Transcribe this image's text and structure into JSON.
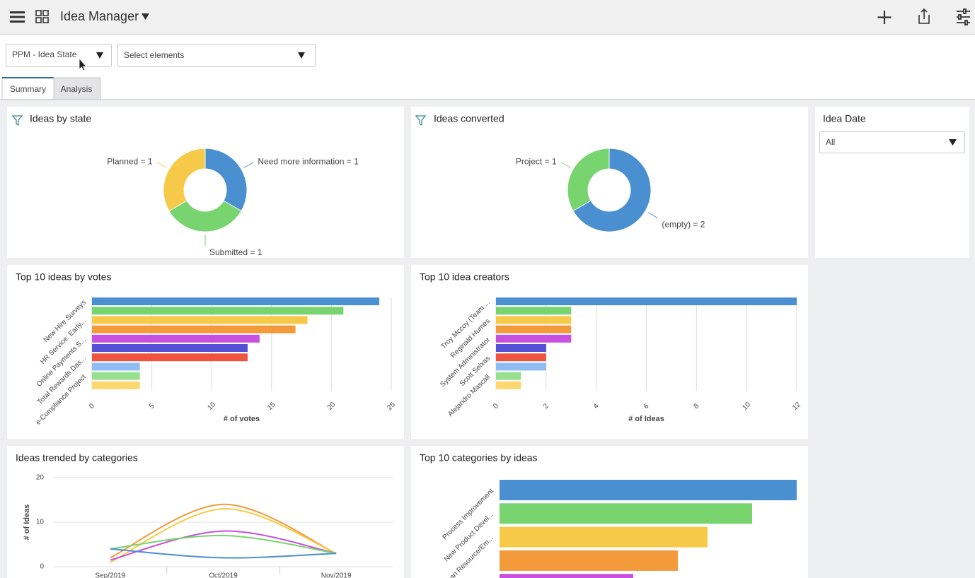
{
  "header": {
    "title": "Idea Manager"
  },
  "filters": {
    "state": "PPM - Idea State",
    "elements": "Select elements"
  },
  "tabs": [
    "Summary",
    "Analysis"
  ],
  "idea_date": {
    "title": "Idea Date",
    "value": "All"
  },
  "chart_data": [
    {
      "type": "donut",
      "title": "Ideas by state",
      "values": [
        1,
        1,
        1
      ],
      "value_labels": [
        "Need more information = 1",
        "Submitted = 1",
        "Planned = 1"
      ],
      "colors": [
        "#4a8fd0",
        "#77d46e",
        "#f7c948"
      ]
    },
    {
      "type": "donut",
      "title": "Ideas converted",
      "values": [
        2,
        1
      ],
      "value_labels": [
        "(empty) = 2",
        "Project = 1"
      ],
      "colors": [
        "#4a8fd0",
        "#77d46e"
      ]
    },
    {
      "type": "hbar",
      "title": "Top 10 ideas by votes",
      "xlabel": "# of votes",
      "categories": [
        "New Hire Surveys",
        null,
        "HR Service: Early...",
        null,
        "Online Payments S...",
        null,
        "Total Rewards Das...",
        null,
        "e-Compliance Project",
        null
      ],
      "values": [
        24,
        21,
        18,
        17,
        14,
        13,
        13,
        4,
        4,
        4
      ],
      "colors": [
        "#4a8fd0",
        "#77d46e",
        "#f7c948",
        "#f39a3a",
        "#c84fe0",
        "#5352d6",
        "#ef5441",
        "#8fbcf2",
        "#96e08f",
        "#fbd970"
      ],
      "xlim": [
        0,
        25
      ],
      "xticks": [
        0,
        5,
        10,
        15,
        20,
        25
      ],
      "grid": true
    },
    {
      "type": "hbar",
      "title": "Top 10 idea creators",
      "xlabel": "# of Ideas",
      "categories": [
        "Troy Mccoy (Team ...",
        null,
        "Reginald Humes",
        null,
        "System Administrator",
        null,
        "Scott Seixas",
        null,
        "Alejandro Mascall",
        null
      ],
      "values": [
        12,
        3,
        3,
        3,
        3,
        2,
        2,
        2,
        1,
        1
      ],
      "colors": [
        "#4a8fd0",
        "#77d46e",
        "#f7c948",
        "#f39a3a",
        "#c84fe0",
        "#5352d6",
        "#ef5441",
        "#8fbcf2",
        "#96e08f",
        "#fbd970"
      ],
      "xlim": [
        0,
        12
      ],
      "xticks": [
        0,
        2,
        4,
        6,
        8,
        10,
        12
      ],
      "grid": true
    },
    {
      "type": "line",
      "title": "Ideas trended by categories",
      "ylabel": "# of Ideas",
      "categories": [
        "Sep/2019",
        "Oct/2019",
        "Nov/2019"
      ],
      "series": [
        {
          "color": "#f39a3a",
          "values": [
            2,
            14,
            3
          ]
        },
        {
          "color": "#f7c948",
          "values": [
            1,
            13,
            3
          ]
        },
        {
          "color": "#c84fe0",
          "values": [
            1.5,
            8,
            3
          ]
        },
        {
          "color": "#77d46e",
          "values": [
            4,
            7,
            3
          ]
        },
        {
          "color": "#4a8fd0",
          "values": [
            4,
            2,
            3
          ]
        }
      ],
      "ylim": [
        0,
        20
      ],
      "yticks": [
        0,
        10,
        20
      ],
      "grid": true
    },
    {
      "type": "hbar2",
      "title": "Top 10 categories by ideas",
      "categories": [
        "Process Improvement",
        "New Product Devel...",
        "Human Resource/Em...",
        null,
        null
      ],
      "values": [
        20,
        17,
        14,
        12,
        9
      ],
      "colors": [
        "#4a8fd0",
        "#77d46e",
        "#f7c948",
        "#f39a3a",
        "#c84fe0"
      ],
      "xlim": [
        0,
        20
      ]
    }
  ]
}
